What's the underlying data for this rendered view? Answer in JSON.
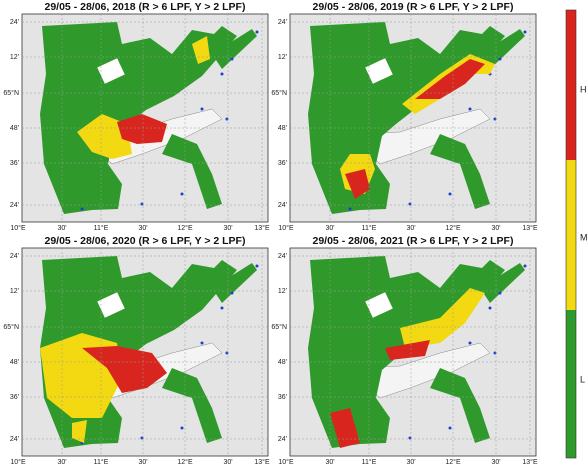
{
  "panels": [
    {
      "title": "29/05 - 28/06, 2018 (R > 6 LPF, Y > 2 LPF)"
    },
    {
      "title": "29/05 - 28/06, 2019 (R > 6 LPF, Y > 2 LPF)"
    },
    {
      "title": "29/05 - 28/06, 2020 (R > 6 LPF, Y > 2 LPF)"
    },
    {
      "title": "29/05 - 28/06, 2021 (R > 6 LPF, Y > 2 LPF)"
    }
  ],
  "y_axis_labels": [
    "24'",
    "12'",
    "65°N",
    "48'",
    "36'",
    "24'"
  ],
  "x_axis_labels": [
    "10°E",
    "30'",
    "11°E",
    "30'",
    "12°E",
    "30'",
    "13°E"
  ],
  "colorbar": {
    "labels": [
      "H",
      "M",
      "L"
    ]
  }
}
